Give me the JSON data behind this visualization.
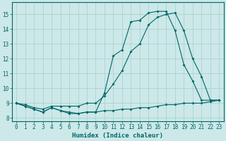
{
  "xlabel": "Humidex (Indice chaleur)",
  "xlim": [
    -0.5,
    23.5
  ],
  "ylim": [
    7.8,
    15.8
  ],
  "xticks": [
    0,
    1,
    2,
    3,
    4,
    5,
    6,
    7,
    8,
    9,
    10,
    11,
    12,
    13,
    14,
    15,
    16,
    17,
    18,
    19,
    20,
    21,
    22,
    23
  ],
  "yticks": [
    8,
    9,
    10,
    11,
    12,
    13,
    14,
    15
  ],
  "bg_color": "#cce8e8",
  "grid_color": "#aacece",
  "line_color": "#006666",
  "line1_x": [
    0,
    1,
    2,
    3,
    4,
    5,
    6,
    7,
    8,
    9,
    10,
    11,
    12,
    13,
    14,
    15,
    16,
    17,
    18,
    19,
    20,
    21,
    22,
    23
  ],
  "line1_y": [
    9.0,
    8.8,
    8.6,
    8.4,
    8.7,
    8.5,
    8.3,
    8.3,
    8.4,
    8.4,
    8.5,
    8.5,
    8.6,
    8.6,
    8.7,
    8.7,
    8.8,
    8.9,
    8.9,
    9.0,
    9.0,
    9.0,
    9.1,
    9.2
  ],
  "line2_x": [
    0,
    1,
    2,
    3,
    4,
    5,
    6,
    7,
    8,
    9,
    10,
    11,
    12,
    13,
    14,
    15,
    16,
    17,
    18,
    19,
    20,
    21,
    22,
    23
  ],
  "line2_y": [
    9.0,
    8.8,
    8.6,
    8.4,
    8.7,
    8.5,
    8.4,
    8.3,
    8.4,
    8.4,
    9.7,
    12.2,
    12.6,
    14.5,
    14.6,
    15.1,
    15.2,
    15.2,
    13.9,
    11.6,
    10.5,
    9.2,
    9.2,
    9.2
  ],
  "line3_x": [
    0,
    1,
    2,
    3,
    4,
    5,
    6,
    7,
    8,
    9,
    10,
    11,
    12,
    13,
    14,
    15,
    16,
    17,
    18,
    19,
    20,
    21,
    22,
    23
  ],
  "line3_y": [
    9.0,
    8.9,
    8.7,
    8.6,
    8.8,
    8.8,
    8.8,
    8.8,
    9.0,
    9.0,
    9.5,
    10.3,
    11.2,
    12.5,
    13.0,
    14.3,
    14.8,
    15.0,
    15.1,
    13.9,
    12.0,
    10.8,
    9.2,
    9.2
  ]
}
